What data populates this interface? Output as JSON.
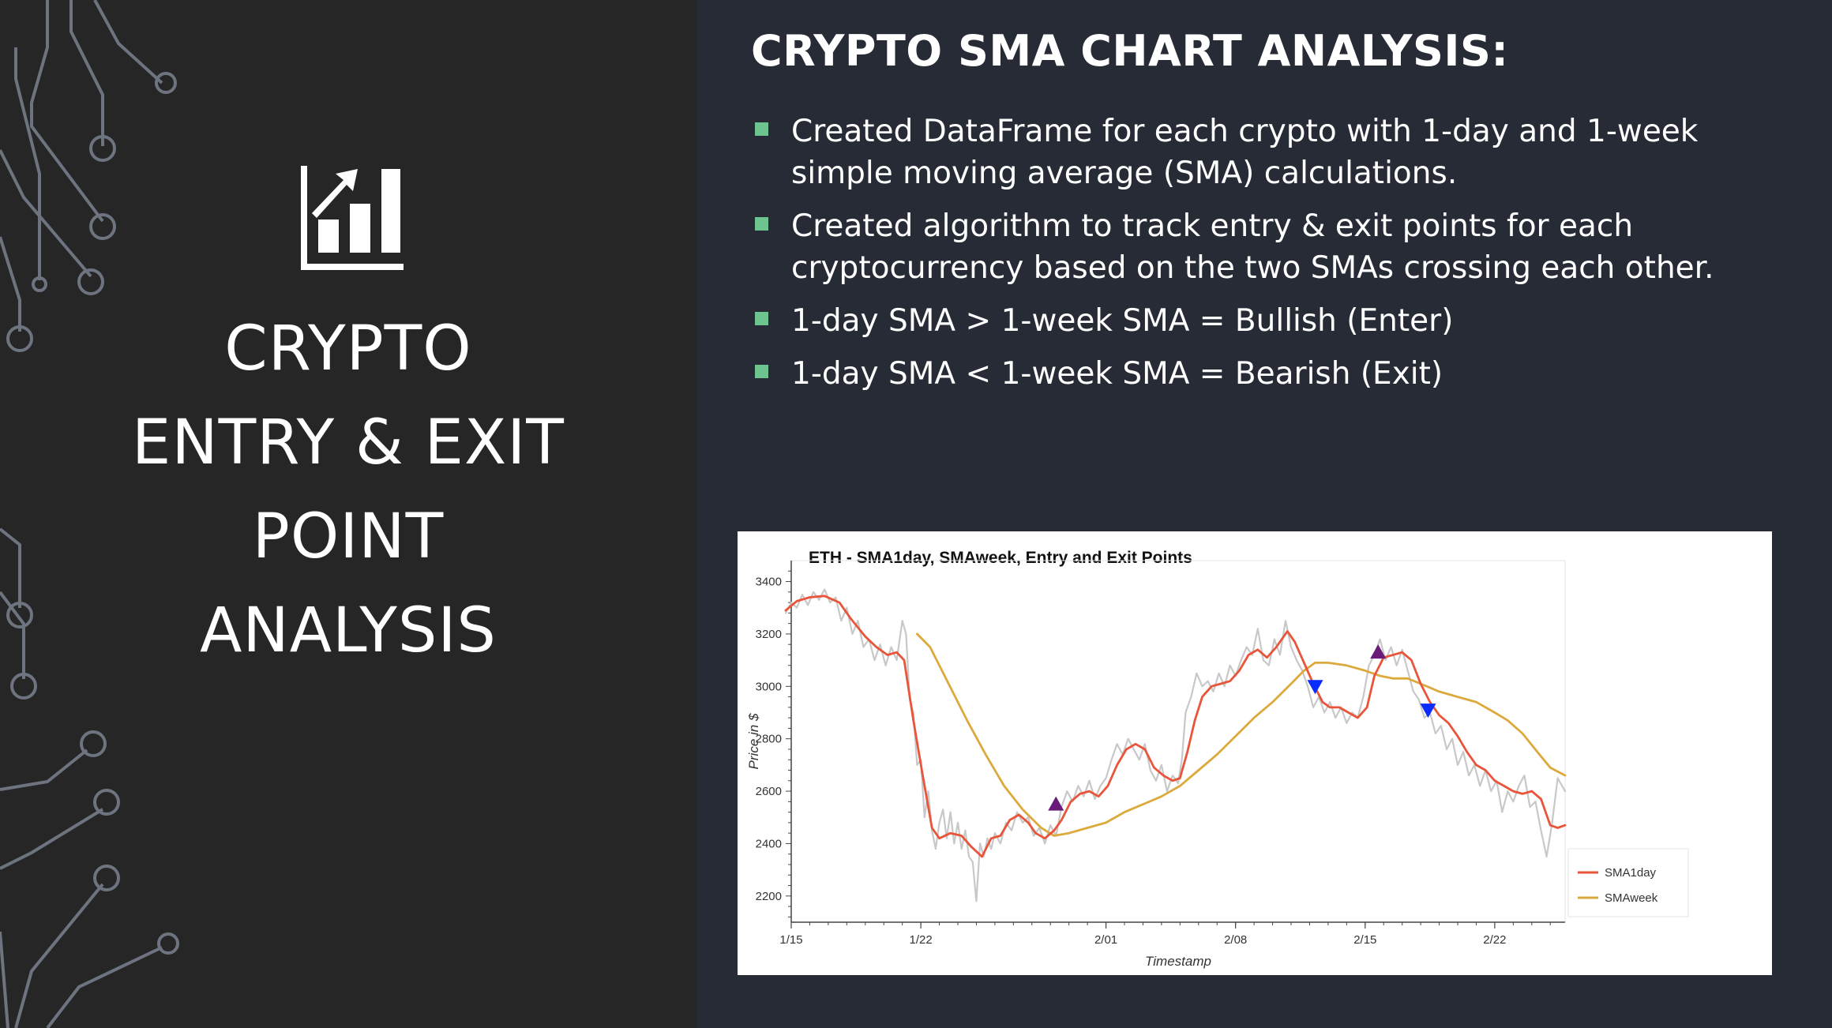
{
  "slide": {
    "left_title_lines": [
      "CRYPTO",
      "ENTRY & EXIT",
      "POINT",
      "ANALYSIS"
    ],
    "icon": "bar-chart-trend-icon",
    "heading": "CRYPTO SMA CHART ANALYSIS:",
    "bullets": [
      "Created DataFrame for each crypto with 1-day and 1-week simple moving average (SMA) calculations.",
      "Created algorithm to track entry & exit points for each cryptocurrency based on the two SMAs crossing each other.",
      "1-day SMA > 1-week SMA = Bullish (Enter)",
      "1-day SMA < 1-week SMA = Bearish (Exit)"
    ],
    "colors": {
      "left_panel": "#262626",
      "right_panel": "#262b35",
      "bullet": "#6dc48e",
      "text": "#ffffff"
    }
  },
  "chart_data": {
    "type": "line",
    "title": "ETH - SMA1day, SMAweek, Entry and Exit Points",
    "xlabel": "Timestamp",
    "ylabel": "Price in $",
    "ylim": [
      2100,
      3480
    ],
    "xlim": [
      0,
      41.8
    ],
    "x_ticks": [
      {
        "x": 0,
        "label": "1/15"
      },
      {
        "x": 7,
        "label": "1/22"
      },
      {
        "x": 17,
        "label": "2/01"
      },
      {
        "x": 24,
        "label": "2/08"
      },
      {
        "x": 31,
        "label": "2/15"
      },
      {
        "x": 38,
        "label": "2/22"
      }
    ],
    "y_ticks": [
      2200,
      2400,
      2600,
      2800,
      3000,
      3200,
      3400
    ],
    "grid": false,
    "legend": "bottom-right",
    "series": [
      {
        "name": "SMA1day",
        "color": "#e8553a",
        "points": [
          [
            -0.3,
            3290
          ],
          [
            0.3,
            3325
          ],
          [
            1,
            3340
          ],
          [
            1.8,
            3345
          ],
          [
            2.6,
            3320
          ],
          [
            3.2,
            3260
          ],
          [
            4,
            3190
          ],
          [
            4.6,
            3150
          ],
          [
            5.2,
            3120
          ],
          [
            5.7,
            3130
          ],
          [
            6.1,
            3100
          ],
          [
            6.6,
            2870
          ],
          [
            7.1,
            2660
          ],
          [
            7.6,
            2460
          ],
          [
            8,
            2420
          ],
          [
            8.6,
            2440
          ],
          [
            9.2,
            2430
          ],
          [
            9.7,
            2390
          ],
          [
            10.3,
            2350
          ],
          [
            10.8,
            2420
          ],
          [
            11.3,
            2430
          ],
          [
            11.8,
            2490
          ],
          [
            12.3,
            2510
          ],
          [
            12.8,
            2480
          ],
          [
            13.2,
            2440
          ],
          [
            13.7,
            2420
          ],
          [
            14.2,
            2450
          ],
          [
            14.6,
            2490
          ],
          [
            15.1,
            2560
          ],
          [
            15.6,
            2590
          ],
          [
            16.1,
            2600
          ],
          [
            16.6,
            2580
          ],
          [
            17.1,
            2620
          ],
          [
            17.6,
            2700
          ],
          [
            18.1,
            2760
          ],
          [
            18.6,
            2780
          ],
          [
            19.1,
            2760
          ],
          [
            19.6,
            2690
          ],
          [
            20.1,
            2660
          ],
          [
            20.6,
            2640
          ],
          [
            21,
            2650
          ],
          [
            21.4,
            2750
          ],
          [
            21.8,
            2870
          ],
          [
            22.2,
            2960
          ],
          [
            22.7,
            3000
          ],
          [
            23.2,
            3010
          ],
          [
            23.7,
            3020
          ],
          [
            24.2,
            3060
          ],
          [
            24.7,
            3120
          ],
          [
            25.2,
            3140
          ],
          [
            25.7,
            3110
          ],
          [
            26.2,
            3150
          ],
          [
            26.8,
            3210
          ],
          [
            27.2,
            3170
          ],
          [
            27.7,
            3090
          ],
          [
            28.2,
            3010
          ],
          [
            28.7,
            2940
          ],
          [
            29.1,
            2920
          ],
          [
            29.6,
            2920
          ],
          [
            30.1,
            2900
          ],
          [
            30.6,
            2880
          ],
          [
            31.1,
            2920
          ],
          [
            31.5,
            3040
          ],
          [
            32,
            3110
          ],
          [
            32.5,
            3120
          ],
          [
            33,
            3130
          ],
          [
            33.5,
            3100
          ],
          [
            34,
            3010
          ],
          [
            34.5,
            2940
          ],
          [
            35,
            2890
          ],
          [
            35.5,
            2860
          ],
          [
            36,
            2810
          ],
          [
            36.5,
            2750
          ],
          [
            37,
            2700
          ],
          [
            37.5,
            2680
          ],
          [
            38,
            2640
          ],
          [
            38.5,
            2620
          ],
          [
            39,
            2600
          ],
          [
            39.5,
            2590
          ],
          [
            40,
            2600
          ],
          [
            40.5,
            2570
          ],
          [
            41,
            2470
          ],
          [
            41.4,
            2460
          ],
          [
            41.8,
            2470
          ]
        ]
      },
      {
        "name": "SMAweek",
        "color": "#dcaa3c",
        "points": [
          [
            6.8,
            3200
          ],
          [
            7.5,
            3150
          ],
          [
            8.5,
            3010
          ],
          [
            9.5,
            2870
          ],
          [
            10.5,
            2740
          ],
          [
            11.5,
            2620
          ],
          [
            12.5,
            2530
          ],
          [
            13.5,
            2460
          ],
          [
            14.2,
            2430
          ],
          [
            15,
            2440
          ],
          [
            16,
            2460
          ],
          [
            17,
            2480
          ],
          [
            18,
            2520
          ],
          [
            19,
            2550
          ],
          [
            20,
            2580
          ],
          [
            21,
            2620
          ],
          [
            22,
            2680
          ],
          [
            23,
            2740
          ],
          [
            24,
            2810
          ],
          [
            25,
            2880
          ],
          [
            26,
            2940
          ],
          [
            27,
            3010
          ],
          [
            27.7,
            3060
          ],
          [
            28.3,
            3090
          ],
          [
            29,
            3090
          ],
          [
            30,
            3080
          ],
          [
            31,
            3060
          ],
          [
            31.8,
            3040
          ],
          [
            32.5,
            3030
          ],
          [
            33.3,
            3030
          ],
          [
            34,
            3010
          ],
          [
            35,
            2980
          ],
          [
            36,
            2960
          ],
          [
            37,
            2940
          ],
          [
            38,
            2900
          ],
          [
            38.7,
            2870
          ],
          [
            39.5,
            2820
          ],
          [
            40.3,
            2750
          ],
          [
            41,
            2690
          ],
          [
            41.8,
            2660
          ]
        ]
      },
      {
        "name": "Price",
        "color": "#c8c8c8",
        "points": [
          [
            -0.3,
            3280
          ],
          [
            0,
            3320
          ],
          [
            0.3,
            3300
          ],
          [
            0.6,
            3350
          ],
          [
            0.9,
            3310
          ],
          [
            1.2,
            3360
          ],
          [
            1.5,
            3330
          ],
          [
            1.8,
            3370
          ],
          [
            2.1,
            3320
          ],
          [
            2.4,
            3340
          ],
          [
            2.7,
            3250
          ],
          [
            3,
            3300
          ],
          [
            3.3,
            3200
          ],
          [
            3.6,
            3250
          ],
          [
            3.9,
            3150
          ],
          [
            4.2,
            3180
          ],
          [
            4.5,
            3100
          ],
          [
            4.8,
            3160
          ],
          [
            5.1,
            3080
          ],
          [
            5.4,
            3150
          ],
          [
            5.7,
            3100
          ],
          [
            6,
            3250
          ],
          [
            6.2,
            3200
          ],
          [
            6.4,
            2950
          ],
          [
            6.6,
            2900
          ],
          [
            6.8,
            2700
          ],
          [
            7,
            2720
          ],
          [
            7.2,
            2500
          ],
          [
            7.4,
            2600
          ],
          [
            7.6,
            2450
          ],
          [
            7.8,
            2380
          ],
          [
            8,
            2480
          ],
          [
            8.2,
            2530
          ],
          [
            8.4,
            2420
          ],
          [
            8.6,
            2520
          ],
          [
            8.8,
            2400
          ],
          [
            9,
            2480
          ],
          [
            9.2,
            2380
          ],
          [
            9.4,
            2450
          ],
          [
            9.6,
            2350
          ],
          [
            9.8,
            2330
          ],
          [
            10,
            2180
          ],
          [
            10.2,
            2400
          ],
          [
            10.4,
            2350
          ],
          [
            10.6,
            2420
          ],
          [
            10.8,
            2380
          ],
          [
            11,
            2440
          ],
          [
            11.3,
            2400
          ],
          [
            11.6,
            2480
          ],
          [
            11.9,
            2450
          ],
          [
            12.2,
            2520
          ],
          [
            12.5,
            2480
          ],
          [
            12.8,
            2500
          ],
          [
            13.1,
            2430
          ],
          [
            13.4,
            2460
          ],
          [
            13.7,
            2400
          ],
          [
            14,
            2470
          ],
          [
            14.3,
            2430
          ],
          [
            14.6,
            2540
          ],
          [
            14.9,
            2600
          ],
          [
            15.2,
            2560
          ],
          [
            15.5,
            2620
          ],
          [
            15.8,
            2580
          ],
          [
            16.1,
            2640
          ],
          [
            16.4,
            2570
          ],
          [
            16.7,
            2620
          ],
          [
            17,
            2650
          ],
          [
            17.3,
            2720
          ],
          [
            17.6,
            2780
          ],
          [
            17.9,
            2740
          ],
          [
            18.2,
            2800
          ],
          [
            18.5,
            2760
          ],
          [
            18.8,
            2720
          ],
          [
            19.1,
            2780
          ],
          [
            19.4,
            2680
          ],
          [
            19.7,
            2640
          ],
          [
            20,
            2700
          ],
          [
            20.3,
            2600
          ],
          [
            20.6,
            2660
          ],
          [
            20.9,
            2630
          ],
          [
            21.1,
            2720
          ],
          [
            21.3,
            2900
          ],
          [
            21.6,
            2960
          ],
          [
            21.9,
            3050
          ],
          [
            22.2,
            3000
          ],
          [
            22.5,
            3020
          ],
          [
            22.8,
            2980
          ],
          [
            23.1,
            3050
          ],
          [
            23.4,
            3000
          ],
          [
            23.7,
            3080
          ],
          [
            24,
            3040
          ],
          [
            24.3,
            3100
          ],
          [
            24.6,
            3150
          ],
          [
            24.9,
            3120
          ],
          [
            25.2,
            3220
          ],
          [
            25.5,
            3100
          ],
          [
            25.8,
            3080
          ],
          [
            26.1,
            3180
          ],
          [
            26.4,
            3120
          ],
          [
            26.7,
            3250
          ],
          [
            27,
            3150
          ],
          [
            27.3,
            3100
          ],
          [
            27.6,
            3060
          ],
          [
            27.9,
            3000
          ],
          [
            28.2,
            2920
          ],
          [
            28.5,
            2960
          ],
          [
            28.8,
            2900
          ],
          [
            29.1,
            2940
          ],
          [
            29.4,
            2880
          ],
          [
            29.7,
            2920
          ],
          [
            30,
            2860
          ],
          [
            30.3,
            2900
          ],
          [
            30.6,
            2880
          ],
          [
            30.9,
            2960
          ],
          [
            31.2,
            3080
          ],
          [
            31.5,
            3120
          ],
          [
            31.8,
            3180
          ],
          [
            32.1,
            3100
          ],
          [
            32.4,
            3150
          ],
          [
            32.7,
            3080
          ],
          [
            33,
            3140
          ],
          [
            33.3,
            3060
          ],
          [
            33.6,
            2980
          ],
          [
            33.9,
            2950
          ],
          [
            34.2,
            2880
          ],
          [
            34.5,
            2900
          ],
          [
            34.8,
            2820
          ],
          [
            35.1,
            2850
          ],
          [
            35.4,
            2760
          ],
          [
            35.7,
            2800
          ],
          [
            36,
            2700
          ],
          [
            36.3,
            2750
          ],
          [
            36.6,
            2660
          ],
          [
            36.9,
            2700
          ],
          [
            37.2,
            2620
          ],
          [
            37.5,
            2680
          ],
          [
            37.8,
            2600
          ],
          [
            38.1,
            2640
          ],
          [
            38.4,
            2520
          ],
          [
            38.7,
            2600
          ],
          [
            39,
            2560
          ],
          [
            39.3,
            2620
          ],
          [
            39.6,
            2660
          ],
          [
            39.9,
            2540
          ],
          [
            40.2,
            2560
          ],
          [
            40.5,
            2450
          ],
          [
            40.8,
            2350
          ],
          [
            41.1,
            2480
          ],
          [
            41.4,
            2650
          ],
          [
            41.8,
            2600
          ]
        ]
      }
    ],
    "entry_points": [
      [
        14.3,
        2550
      ],
      [
        31.7,
        3130
      ]
    ],
    "exit_points": [
      [
        28.3,
        3000
      ],
      [
        34.4,
        2910
      ]
    ]
  }
}
